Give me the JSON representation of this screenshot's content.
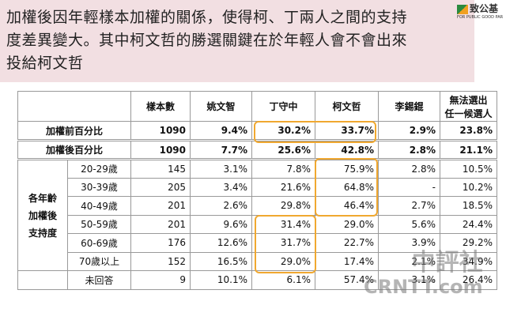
{
  "header": {
    "title_lines": [
      "加權後因年輕樣本加權的關係，使得柯、丁兩人之間的支持",
      "度差異變大。其中柯文哲的勝選關鍵在於年輕人會不會出來",
      "投給柯文哲"
    ]
  },
  "logo": {
    "name": "致公基",
    "subtitle": "FOR PUBLIC GOOD PAR"
  },
  "table": {
    "columns": [
      "樣本數",
      "姚文智",
      "丁守中",
      "柯文哲",
      "李錫錕",
      [
        "無法選出",
        "任一候選人"
      ]
    ],
    "summary_rows": [
      {
        "label": "加權前百分比",
        "cells": [
          "1090",
          "9.4%",
          "30.2%",
          "33.7%",
          "2.9%",
          "23.8%"
        ]
      },
      {
        "label": "加權後百分比",
        "cells": [
          "1090",
          "7.7%",
          "25.6%",
          "42.8%",
          "2.8%",
          "21.1%"
        ]
      }
    ],
    "age_group": {
      "label_lines": [
        "各年齡",
        "加權後",
        "支持度"
      ],
      "rows": [
        {
          "label": "20-29歲",
          "cells": [
            "145",
            "3.1%",
            "7.8%",
            "75.9%",
            "2.8%",
            "10.5%"
          ]
        },
        {
          "label": "30-39歲",
          "cells": [
            "205",
            "3.4%",
            "21.6%",
            "64.8%",
            "-",
            "10.2%"
          ]
        },
        {
          "label": "40-49歲",
          "cells": [
            "201",
            "2.6%",
            "29.8%",
            "46.4%",
            "2.7%",
            "18.5%"
          ]
        },
        {
          "label": "50-59歲",
          "cells": [
            "201",
            "9.6%",
            "31.4%",
            "29.0%",
            "5.6%",
            "24.4%"
          ]
        },
        {
          "label": "60-69歲",
          "cells": [
            "176",
            "12.6%",
            "31.7%",
            "22.7%",
            "3.9%",
            "29.2%"
          ]
        },
        {
          "label": "70歲以上",
          "cells": [
            "152",
            "16.5%",
            "29.0%",
            "17.4%",
            "2.1%",
            "34.9%"
          ]
        },
        {
          "label": "未回答",
          "cells": [
            "9",
            "10.1%",
            "6.1%",
            "57.4%",
            "3.1%",
            "26.4%"
          ]
        }
      ]
    }
  },
  "watermark": {
    "cn": "中評社",
    "en": "CRNTT.com"
  }
}
